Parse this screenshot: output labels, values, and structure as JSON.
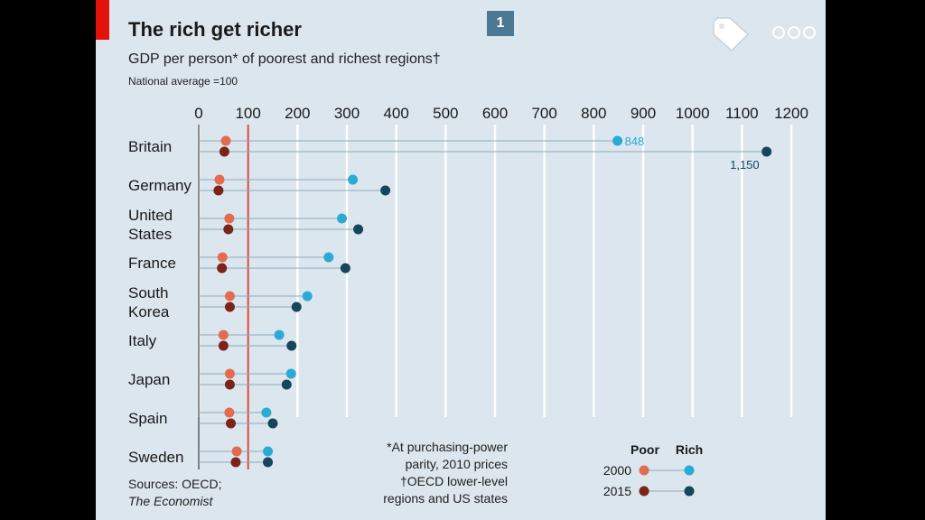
{
  "header": {
    "title": "The rich get richer",
    "subtitle": "GDP per person* of poorest and richest regions†",
    "note": "National average =100",
    "page_badge": "1",
    "icons": [
      "tag-icon",
      "more-options-icon"
    ]
  },
  "footer": {
    "sources_line1": "Sources: OECD;",
    "sources_line2": "The Economist",
    "footnote_1a": "*At purchasing-power",
    "footnote_1b": "parity, 2010 prices",
    "footnote_2a": "†OECD lower-level",
    "footnote_2b": "regions and US states"
  },
  "colors": {
    "poor_2000": "#e36b4f",
    "poor_2015": "#7b2418",
    "rich_2000": "#2aabd6",
    "rich_2015": "#15465a",
    "reference_line": "#d9412a",
    "brand_red": "#e3120b"
  },
  "chart_data": {
    "type": "dot",
    "title": "The rich get richer",
    "subtitle": "GDP per person* of poorest and richest regions†",
    "xlim": [
      0,
      1200
    ],
    "x_ticks": [
      0,
      100,
      200,
      300,
      400,
      500,
      600,
      700,
      800,
      900,
      1000,
      1100,
      1200
    ],
    "reference_value": 100,
    "grid": true,
    "legend": {
      "position": "bottom-right",
      "column_headers": [
        "Poor",
        "Rich"
      ],
      "row_labels": [
        "2000",
        "2015"
      ]
    },
    "categories": [
      {
        "name": [
          "Britain"
        ],
        "poor_2000": 55,
        "poor_2015": 52,
        "rich_2000": 848,
        "rich_2015": 1150
      },
      {
        "name": [
          "Germany"
        ],
        "poor_2000": 42,
        "poor_2015": 40,
        "rich_2000": 312,
        "rich_2015": 378
      },
      {
        "name": [
          "United",
          "States"
        ],
        "poor_2000": 62,
        "poor_2015": 60,
        "rich_2000": 290,
        "rich_2015": 323
      },
      {
        "name": [
          "France"
        ],
        "poor_2000": 48,
        "poor_2015": 47,
        "rich_2000": 263,
        "rich_2015": 297
      },
      {
        "name": [
          "South",
          "Korea"
        ],
        "poor_2000": 63,
        "poor_2015": 63,
        "rich_2000": 220,
        "rich_2015": 198
      },
      {
        "name": [
          "Italy"
        ],
        "poor_2000": 50,
        "poor_2015": 50,
        "rich_2000": 163,
        "rich_2015": 188
      },
      {
        "name": [
          "Japan"
        ],
        "poor_2000": 63,
        "poor_2015": 63,
        "rich_2000": 187,
        "rich_2015": 178
      },
      {
        "name": [
          "Spain"
        ],
        "poor_2000": 62,
        "poor_2015": 65,
        "rich_2000": 137,
        "rich_2015": 150
      },
      {
        "name": [
          "Sweden"
        ],
        "poor_2000": 77,
        "poor_2015": 75,
        "rich_2000": 140,
        "rich_2015": 140
      }
    ],
    "data_labels": [
      {
        "category": "Britain",
        "series": "rich_2000",
        "text": "848"
      },
      {
        "category": "Britain",
        "series": "rich_2015",
        "text": "1,150"
      }
    ]
  }
}
